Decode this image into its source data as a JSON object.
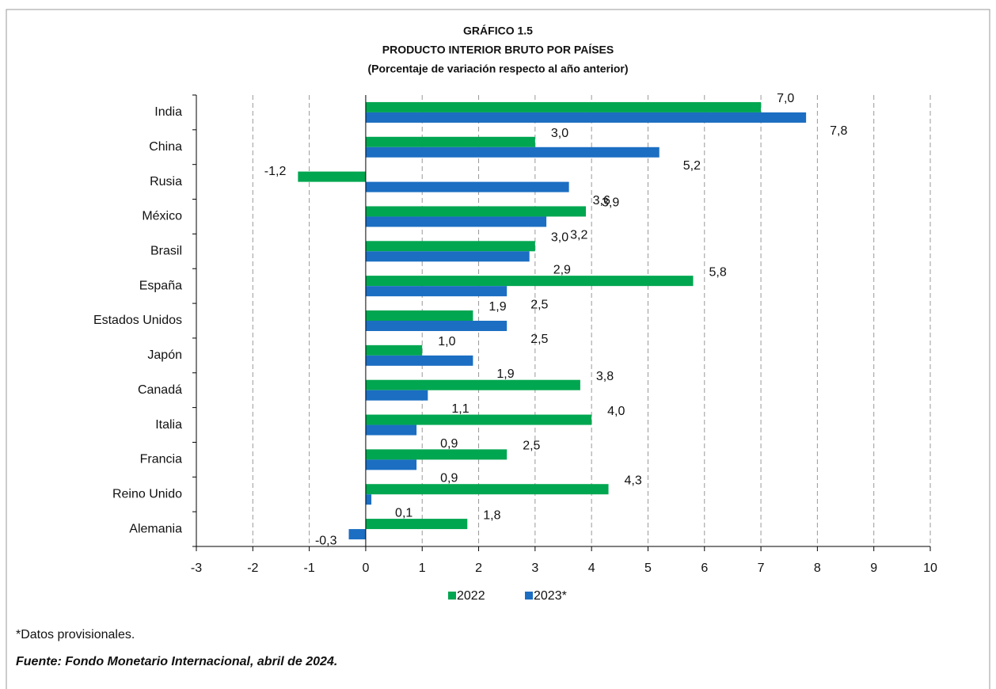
{
  "chart_data": {
    "type": "hbar",
    "title": "GRÁFICO 1.5",
    "subtitle": "PRODUCTO INTERIOR BRUTO POR PAÍSES",
    "subtitle2": "(Porcentaje de variación respecto al año anterior)",
    "categories": [
      "India",
      "China",
      "Rusia",
      "México",
      "Brasil",
      "España",
      "Estados Unidos",
      "Japón",
      "Canadá",
      "Italia",
      "Francia",
      "Reino Unido",
      "Alemania"
    ],
    "series": [
      {
        "name": "2022",
        "color": "#00a650",
        "values": [
          7.0,
          3.0,
          -1.2,
          3.9,
          3.0,
          5.8,
          1.9,
          1.0,
          3.8,
          4.0,
          2.5,
          4.3,
          1.8
        ],
        "value_labels": [
          "7,0",
          "3,0",
          "-1,2",
          "3,9",
          "3,0",
          "5,8",
          "1,9",
          "1,0",
          "3,8",
          "4,0",
          "2,5",
          "4,3",
          "1,8"
        ]
      },
      {
        "name": "2023*",
        "color": "#1b6ec2",
        "values": [
          7.8,
          5.2,
          3.6,
          3.2,
          2.9,
          2.5,
          2.5,
          1.9,
          1.1,
          0.9,
          0.9,
          0.1,
          -0.3
        ],
        "value_labels": [
          "7,8",
          "5,2",
          "3,6",
          "3,2",
          "2,9",
          "2,5",
          "2,5",
          "1,9",
          "1,1",
          "0,9",
          "0,9",
          "0,1",
          "-0,3"
        ]
      }
    ],
    "xlim": [
      -3,
      10
    ],
    "xticks": [
      -3,
      -2,
      -1,
      0,
      1,
      2,
      3,
      4,
      5,
      6,
      7,
      8,
      9,
      10
    ],
    "grid": true,
    "legend": "bottom",
    "note": "*Datos provisionales.",
    "source": "Fuente: Fondo Monetario Internacional, abril de 2024."
  }
}
